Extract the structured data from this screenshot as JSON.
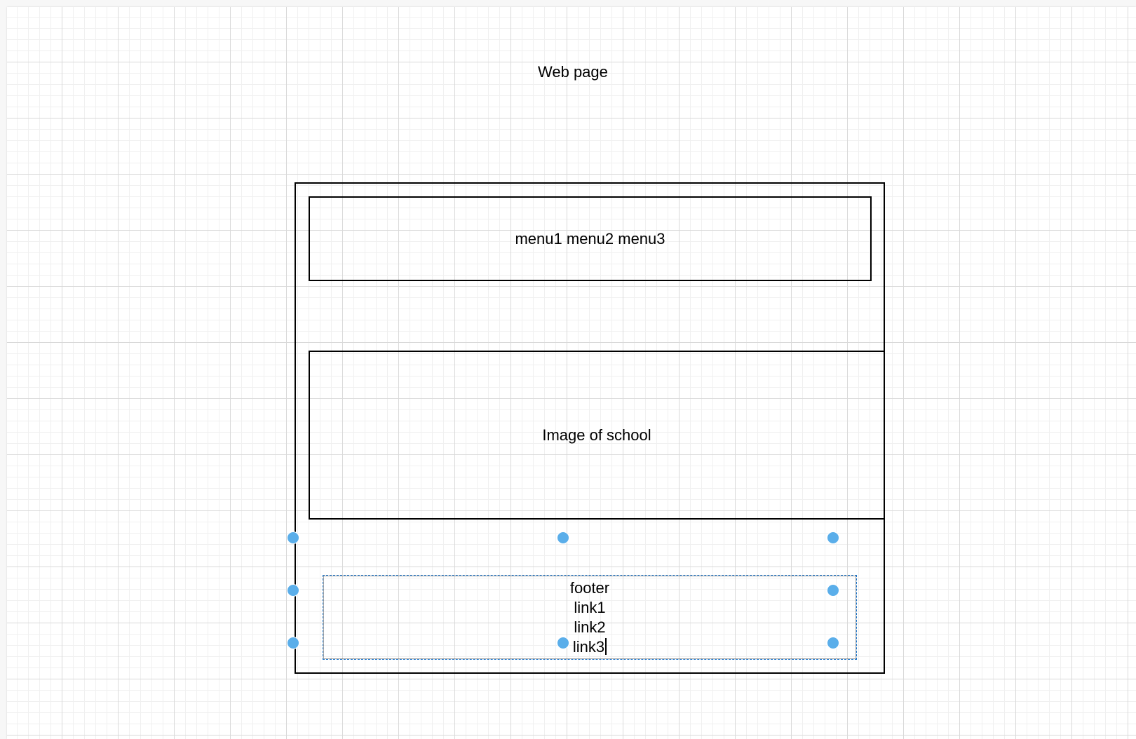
{
  "diagram": {
    "title": "Web page",
    "menu_box_label": "menu1 menu2 menu3",
    "image_box_label": "Image of school",
    "footer_lines": [
      "footer",
      "link1",
      "link2",
      "link3"
    ],
    "selection_color": "#5aaeea",
    "selected_element": "footer"
  }
}
